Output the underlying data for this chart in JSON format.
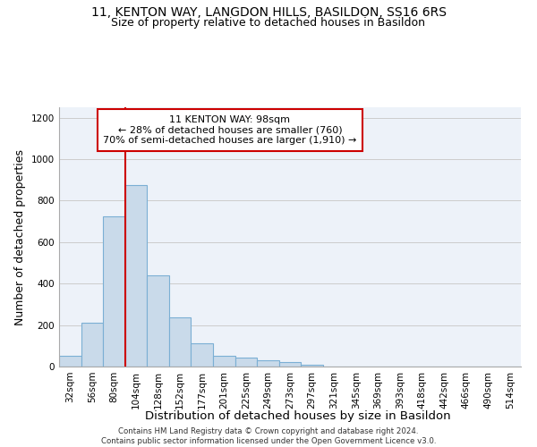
{
  "title_line1": "11, KENTON WAY, LANGDON HILLS, BASILDON, SS16 6RS",
  "title_line2": "Size of property relative to detached houses in Basildon",
  "xlabel": "Distribution of detached houses by size in Basildon",
  "ylabel": "Number of detached properties",
  "footnote": "Contains HM Land Registry data © Crown copyright and database right 2024.\nContains public sector information licensed under the Open Government Licence v3.0.",
  "bin_labels": [
    "32sqm",
    "56sqm",
    "80sqm",
    "104sqm",
    "128sqm",
    "152sqm",
    "177sqm",
    "201sqm",
    "225sqm",
    "249sqm",
    "273sqm",
    "297sqm",
    "321sqm",
    "345sqm",
    "369sqm",
    "393sqm",
    "418sqm",
    "442sqm",
    "466sqm",
    "490sqm",
    "514sqm"
  ],
  "bar_values": [
    50,
    210,
    725,
    875,
    440,
    235,
    110,
    50,
    45,
    30,
    20,
    10,
    0,
    0,
    0,
    0,
    0,
    0,
    0,
    0,
    0
  ],
  "bar_color": "#c9daea",
  "bar_edge_color": "#7bafd4",
  "property_line_x": 2.5,
  "annotation_text": "11 KENTON WAY: 98sqm\n← 28% of detached houses are smaller (760)\n70% of semi-detached houses are larger (1,910) →",
  "annotation_box_color": "#ffffff",
  "annotation_box_edge_color": "#cc0000",
  "vline_color": "#cc0000",
  "ylim": [
    0,
    1250
  ],
  "yticks": [
    0,
    200,
    400,
    600,
    800,
    1000,
    1200
  ],
  "grid_color": "#cccccc",
  "bg_color": "#edf2f9",
  "title_fontsize": 10,
  "subtitle_fontsize": 9,
  "axis_label_fontsize": 9,
  "tick_fontsize": 7.5
}
